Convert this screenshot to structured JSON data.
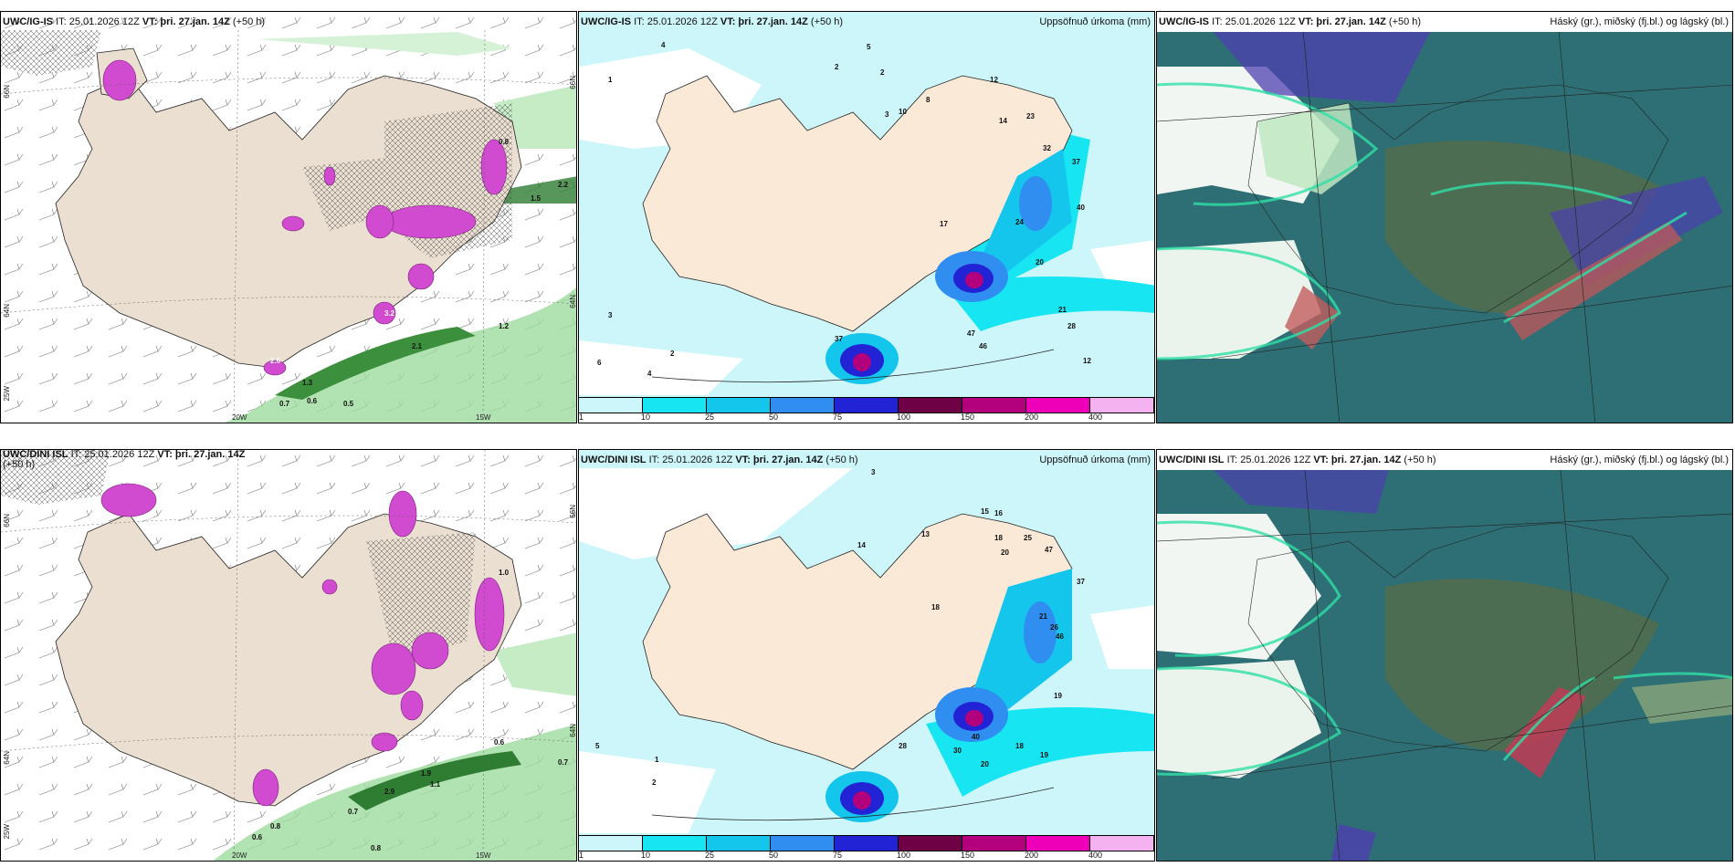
{
  "panels": {
    "p1": {
      "model": "UWC/IG-IS",
      "it": "IT: 25.01.2026 12Z",
      "vt": "VT: þri. 27.jan. 14Z",
      "lead": "(+50 h)",
      "right": ""
    },
    "p2": {
      "model": "UWC/IG-IS",
      "it": "IT: 25.01.2026 12Z",
      "vt": "VT: þri. 27.jan. 14Z",
      "lead": "(+50 h)",
      "right": "Uppsöfnuð úrkoma (mm)"
    },
    "p3": {
      "model": "UWC/IG-IS",
      "it": "IT: 25.01.2026 12Z",
      "vt": "VT: þri. 27.jan. 14Z",
      "lead": "(+50 h)",
      "right": "Háský (gr.), miðský (fj.bl.) og lágský (bl.)"
    },
    "p4": {
      "model": "UWC/DINI ISL",
      "it": "IT: 25.01.2026 12Z",
      "vt": "VT: þri. 27.jan. 14Z",
      "lead": "(+50 h)",
      "right": ""
    },
    "p5": {
      "model": "UWC/DINI ISL",
      "it": "IT: 25.01.2026 12Z",
      "vt": "VT: þri. 27.jan. 14Z",
      "lead": "(+50 h)",
      "right": "Uppsöfnuð úrkoma (mm)"
    },
    "p6": {
      "model": "UWC/DINI ISL",
      "it": "IT: 25.01.2026 12Z",
      "vt": "VT: þri. 27.jan. 14Z",
      "lead": "(+50 h)",
      "right": "Háský (gr.), miðský (fj.bl.) og lágský (bl.)"
    }
  },
  "axes": {
    "lat66": "66N",
    "lat64": "64N",
    "lon25": "25W",
    "lon20": "20W",
    "lon15": "15W"
  },
  "colorbar": {
    "labels": [
      "1",
      "10",
      "25",
      "50",
      "75",
      "100",
      "150",
      "200",
      "400"
    ],
    "colors": [
      "#cdf6fb",
      "#17e6f2",
      "#14c6ec",
      "#2f8ef0",
      "#2323d6",
      "#6e0045",
      "#b3007d",
      "#ee00b8",
      "#f5b2f0"
    ]
  },
  "precip_values_top": [
    "4",
    "2",
    "1",
    "2",
    "3",
    "2",
    "1",
    "3",
    "6",
    "4",
    "5",
    "2",
    "5",
    "3",
    "4",
    "5",
    "2",
    "10",
    "8",
    "4",
    "5",
    "6",
    "8",
    "12",
    "14",
    "9",
    "11",
    "23",
    "13",
    "32",
    "37",
    "18",
    "15",
    "19",
    "40",
    "24",
    "30",
    "20",
    "47",
    "46",
    "21",
    "28",
    "12",
    "17",
    "3",
    "3",
    "5",
    "37",
    "7",
    "8",
    "3",
    "5",
    "4",
    "2",
    "9",
    "7",
    "8"
  ],
  "precip_values_bot": [
    "3",
    "2",
    "1",
    "4",
    "4",
    "3",
    "14",
    "13",
    "9",
    "7",
    "8",
    "15",
    "16",
    "18",
    "25",
    "20",
    "47",
    "18",
    "13",
    "21",
    "26",
    "46",
    "37",
    "25",
    "43",
    "40",
    "28",
    "30",
    "20",
    "19",
    "19",
    "18",
    "2",
    "1",
    "2",
    "5",
    "5",
    "7",
    "9",
    "10",
    "8",
    "6",
    "3"
  ],
  "vis_values_top": [
    "0.7",
    "0.6",
    "1.3",
    "2.1",
    "2.6",
    "3.2",
    "1.2",
    "0.5",
    "0.8",
    "1.5",
    "2.2"
  ],
  "vis_values_bot": [
    "0.6",
    "0.8",
    "0.7",
    "0.8",
    "2.9",
    "1.9",
    "1.1",
    "0.6",
    "0.7",
    "1.0",
    "3.0"
  ]
}
